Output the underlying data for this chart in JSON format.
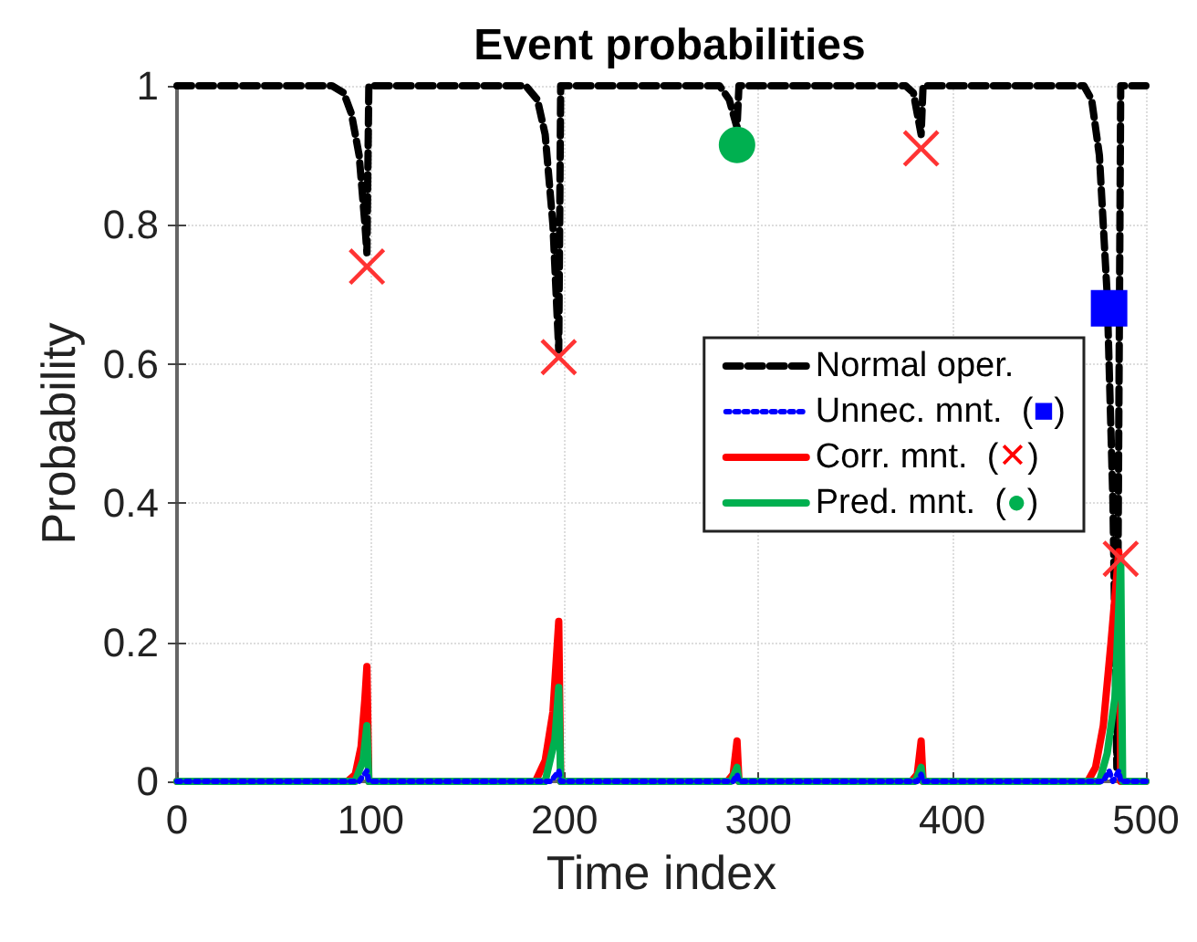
{
  "chart_data": {
    "type": "line",
    "title": "Event probabilities",
    "xlabel": "Time index",
    "ylabel": "Probability",
    "xlim": [
      0,
      500
    ],
    "xticks": [
      0,
      100,
      200,
      300,
      400,
      500
    ],
    "ylim": [
      0,
      1
    ],
    "yticks": [
      0,
      0.2,
      0.4,
      0.6,
      0.8,
      1
    ],
    "grid": true,
    "legend": "right",
    "series": [
      {
        "name": "Normal oper.",
        "color": "#000000",
        "line_style": "dashed",
        "x": [
          0,
          80,
          86,
          90,
          94,
          97,
          98,
          99,
          180,
          186,
          190,
          194,
          197,
          198,
          280,
          285,
          289,
          290,
          376,
          380,
          384,
          385,
          468,
          472,
          476,
          480,
          483,
          485,
          487,
          500
        ],
        "values": [
          1,
          1,
          0.99,
          0.96,
          0.9,
          0.8,
          0.76,
          1,
          1,
          0.98,
          0.93,
          0.8,
          0.62,
          1,
          1,
          0.98,
          0.94,
          1,
          1,
          0.99,
          0.93,
          1,
          1,
          0.98,
          0.9,
          0.7,
          0.4,
          0.02,
          1,
          1
        ]
      },
      {
        "name": "Unnec. mnt.  (■)",
        "color": "#0000ff",
        "line_style": "dotted",
        "x": [
          0,
          94,
          98,
          99,
          193,
          197,
          198,
          287,
          289,
          290,
          382,
          384,
          385,
          478,
          481,
          483,
          486,
          487,
          500
        ],
        "values": [
          0,
          0,
          0.015,
          0,
          0,
          0.015,
          0,
          0,
          0.01,
          0,
          0,
          0.01,
          0,
          0,
          0.015,
          0,
          0.015,
          0,
          0
        ]
      },
      {
        "name": "Corr. mnt.  (✕)",
        "color": "#ff0000",
        "line_style": "solid",
        "x": [
          0,
          88,
          92,
          95,
          97,
          98,
          99,
          185,
          190,
          194,
          197,
          198,
          284,
          287,
          289,
          290,
          379,
          382,
          384,
          385,
          470,
          474,
          478,
          482,
          486,
          487,
          500
        ],
        "values": [
          0,
          0,
          0.01,
          0.05,
          0.12,
          0.165,
          0,
          0,
          0.03,
          0.1,
          0.23,
          0,
          0,
          0.01,
          0.058,
          0,
          0,
          0.01,
          0.058,
          0,
          0,
          0.02,
          0.08,
          0.2,
          0.33,
          0,
          0
        ]
      },
      {
        "name": "Pred. mnt.  (●)",
        "color": "#00b050",
        "line_style": "solid",
        "x": [
          0,
          92,
          96,
          98,
          99,
          190,
          195,
          197,
          198,
          286,
          289,
          290,
          381,
          384,
          385,
          476,
          480,
          484,
          486,
          487,
          488,
          500
        ],
        "values": [
          0,
          0,
          0.03,
          0.08,
          0,
          0,
          0.06,
          0.135,
          0,
          0,
          0.02,
          0,
          0,
          0.02,
          0,
          0,
          0.04,
          0.12,
          0.25,
          0.32,
          0,
          0
        ]
      },
      {
        "type": "scatter",
        "marker": "square",
        "color": "#0000ff",
        "x": [
          481
        ],
        "values": [
          0.68
        ]
      },
      {
        "type": "scatter",
        "marker": "cross",
        "color": "#ff3333",
        "x": [
          98,
          197,
          384,
          487
        ],
        "values": [
          0.74,
          0.61,
          0.91,
          0.32
        ]
      },
      {
        "type": "scatter",
        "marker": "circle",
        "color": "#00b050",
        "x": [
          289
        ],
        "values": [
          0.915
        ]
      }
    ]
  }
}
